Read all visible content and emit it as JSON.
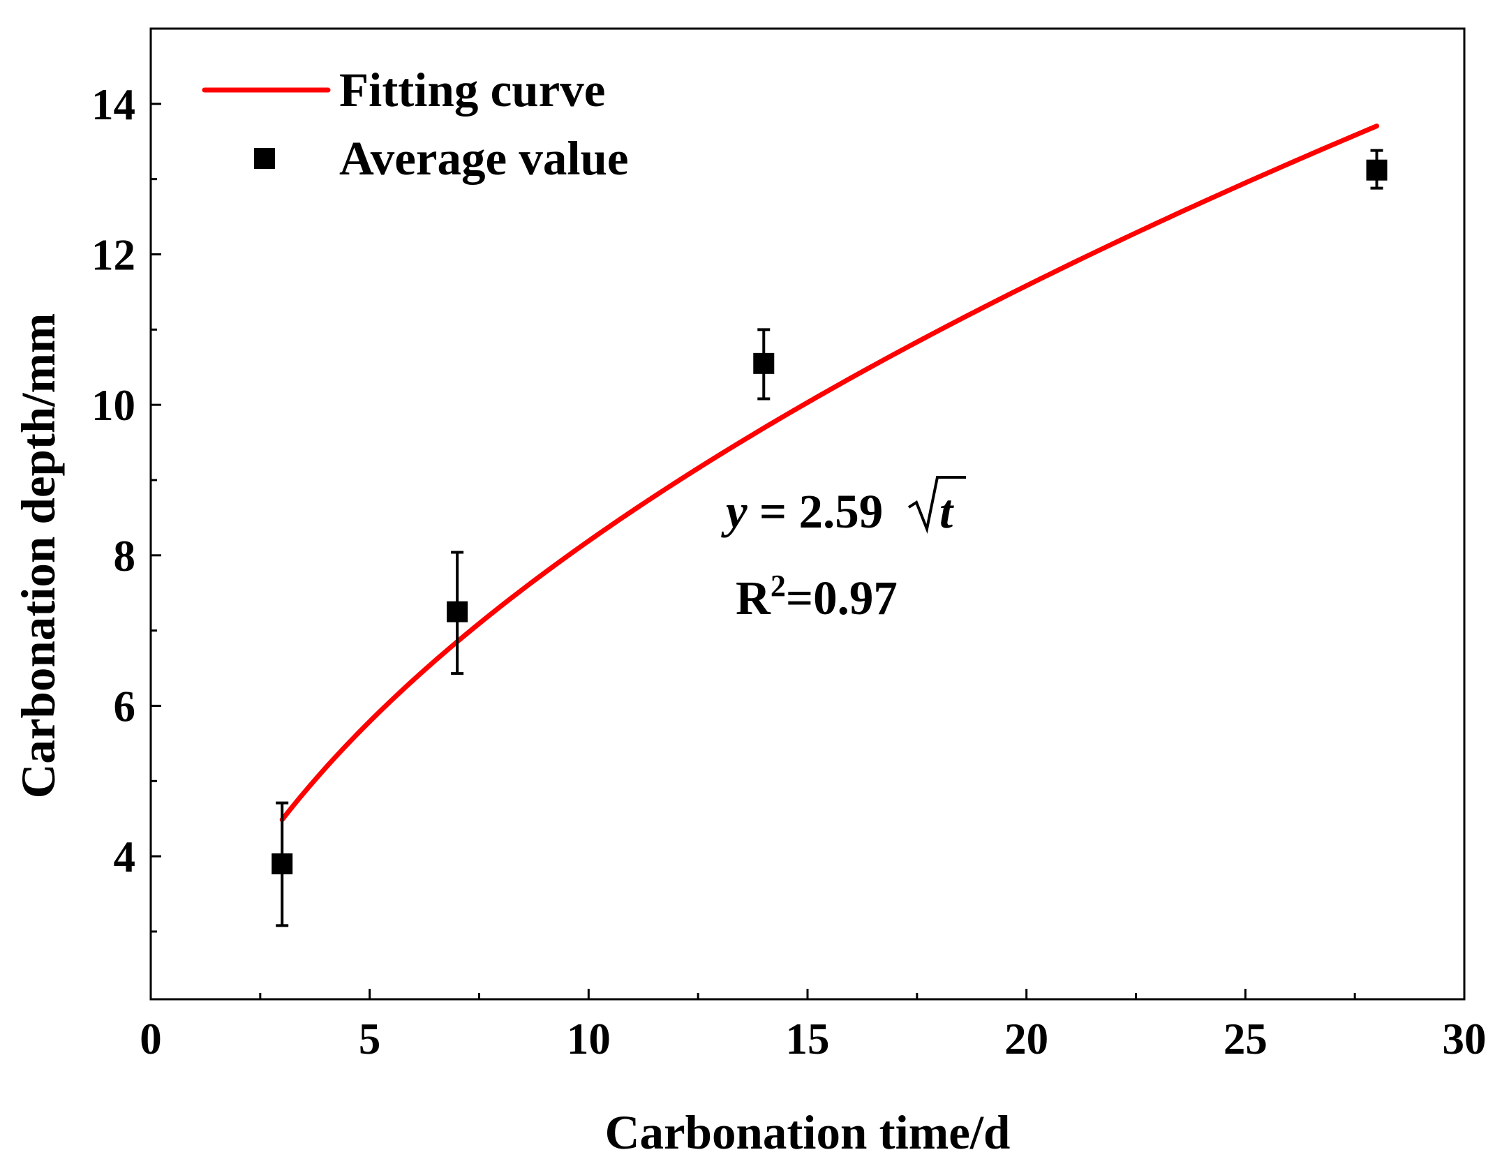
{
  "chart_data": {
    "type": "scatter",
    "title": "",
    "xlabel": "Carbonation time/d",
    "ylabel": "Carbonation depth/mm",
    "xlim": [
      0,
      30
    ],
    "ylim": [
      2.1,
      15
    ],
    "xticks": [
      0,
      5,
      10,
      15,
      20,
      25,
      30
    ],
    "yticks": [
      4,
      6,
      8,
      10,
      12,
      14
    ],
    "grid": false,
    "legend_position": "top-left",
    "colors": {
      "fit": "#ff0000",
      "points": "#000000",
      "axis": "#000000"
    },
    "series": [
      {
        "name": "Average value",
        "kind": "scatter",
        "marker": "square",
        "x": [
          3,
          7,
          14,
          28
        ],
        "y": [
          3.9,
          7.25,
          10.55,
          13.12
        ],
        "error_low": [
          3.08,
          6.43,
          10.08,
          12.88
        ],
        "error_high": [
          4.71,
          8.04,
          11.0,
          13.38
        ]
      },
      {
        "name": "Fitting curve",
        "kind": "line",
        "function": "y = 2.59*sqrt(t)",
        "coefficient": 2.59,
        "x_range": [
          3,
          28
        ]
      }
    ],
    "annotations": {
      "equation_lhs": "y",
      "equation_eq": " = 2.59",
      "equation_var": "t",
      "r2_prefix": "R",
      "r2_sup": "2",
      "r2_value": "=0.97"
    }
  }
}
